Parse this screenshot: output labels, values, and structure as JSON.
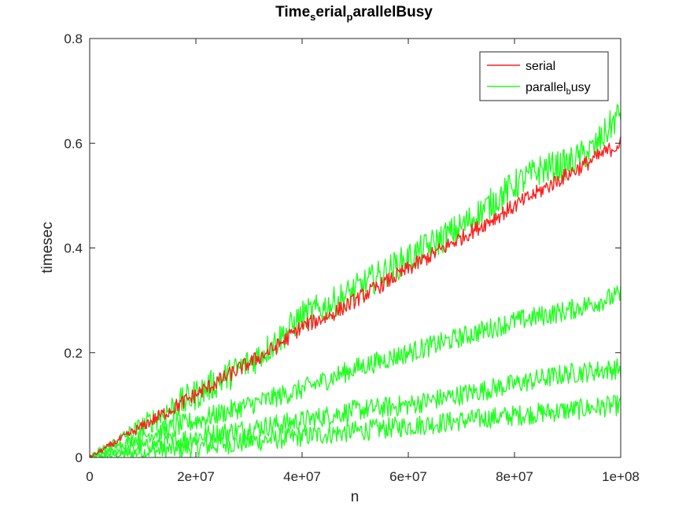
{
  "chart_data": {
    "type": "line",
    "title": {
      "base": "Time",
      "sub1": "s",
      "mid": "erial",
      "sub2": "p",
      "tail": "arallelBusy"
    },
    "xlabel": "n",
    "ylabel": "timesec",
    "xlim": [
      0,
      100000000
    ],
    "ylim": [
      0,
      0.8
    ],
    "xticks": [
      0,
      20000000,
      40000000,
      60000000,
      80000000,
      100000000
    ],
    "xtick_labels": [
      "0",
      "2e+07",
      "4e+07",
      "6e+07",
      "8e+07",
      "1e+08"
    ],
    "yticks": [
      0,
      0.2,
      0.4,
      0.6,
      0.8
    ],
    "ytick_labels": [
      "0",
      "0.2",
      "0.4",
      "0.6",
      "0.8"
    ],
    "grid": false,
    "legend": {
      "position": "top-right",
      "entries": [
        {
          "base": "serial",
          "sub": "",
          "tail": "",
          "color": "#ff2020"
        },
        {
          "base": "parallel",
          "sub": "b",
          "tail": "usy",
          "color": "#20ff20"
        }
      ]
    },
    "series": [
      {
        "legend": "serial",
        "color": "#ff2020",
        "x": [
          0,
          5000000,
          10000000,
          15000000,
          20000000,
          25000000,
          30000000,
          35000000,
          40000000,
          45000000,
          50000000,
          55000000,
          60000000,
          65000000,
          70000000,
          75000000,
          80000000,
          85000000,
          90000000,
          95000000,
          100000000
        ],
        "y": [
          0,
          0.03,
          0.06,
          0.09,
          0.12,
          0.15,
          0.18,
          0.21,
          0.25,
          0.27,
          0.3,
          0.33,
          0.36,
          0.39,
          0.42,
          0.45,
          0.48,
          0.51,
          0.54,
          0.57,
          0.6
        ]
      },
      {
        "legend": "parallel_busy",
        "color": "#20ff20",
        "x": [
          0,
          5000000,
          10000000,
          15000000,
          20000000,
          25000000,
          30000000,
          35000000,
          40000000,
          45000000,
          50000000,
          55000000,
          60000000,
          65000000,
          70000000,
          75000000,
          80000000,
          85000000,
          90000000,
          95000000,
          100000000
        ],
        "y": [
          0,
          0.03,
          0.06,
          0.09,
          0.12,
          0.15,
          0.18,
          0.22,
          0.27,
          0.29,
          0.32,
          0.35,
          0.38,
          0.41,
          0.44,
          0.48,
          0.52,
          0.55,
          0.56,
          0.59,
          0.66
        ]
      },
      {
        "legend": "",
        "color": "#20ff20",
        "x": [
          0,
          10000000,
          20000000,
          30000000,
          40000000,
          50000000,
          60000000,
          70000000,
          80000000,
          90000000,
          100000000
        ],
        "y": [
          0,
          0.04,
          0.07,
          0.1,
          0.13,
          0.17,
          0.2,
          0.23,
          0.26,
          0.28,
          0.31
        ]
      },
      {
        "legend": "",
        "color": "#20ff20",
        "x": [
          0,
          10000000,
          20000000,
          30000000,
          40000000,
          50000000,
          60000000,
          70000000,
          80000000,
          90000000,
          100000000
        ],
        "y": [
          0,
          0.02,
          0.04,
          0.055,
          0.07,
          0.09,
          0.1,
          0.12,
          0.14,
          0.16,
          0.17
        ]
      },
      {
        "legend": "",
        "color": "#20ff20",
        "x": [
          0,
          10000000,
          20000000,
          30000000,
          40000000,
          50000000,
          60000000,
          70000000,
          80000000,
          90000000,
          100000000
        ],
        "y": [
          0,
          0.01,
          0.02,
          0.03,
          0.04,
          0.05,
          0.06,
          0.07,
          0.08,
          0.09,
          0.1
        ]
      }
    ]
  }
}
